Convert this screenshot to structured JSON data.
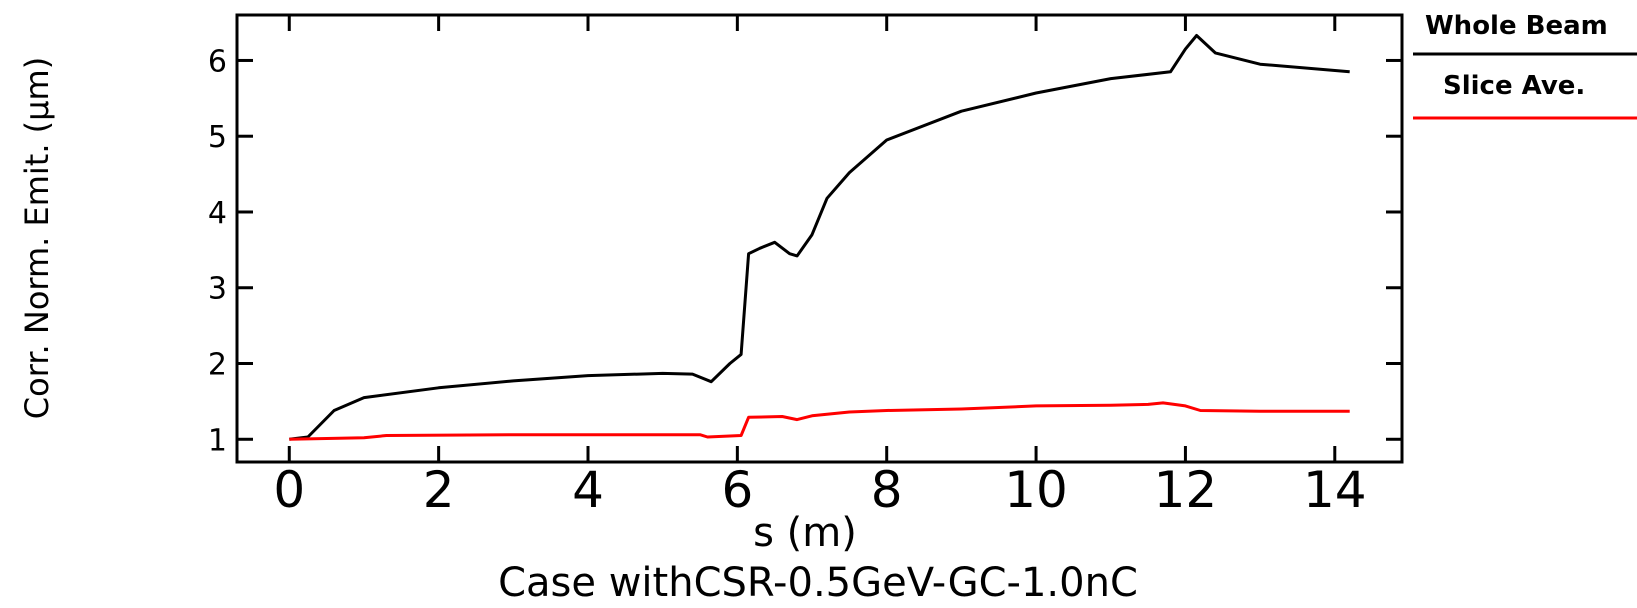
{
  "chart_data": {
    "type": "line",
    "title": "Case withCSR-0.5GeV-GC-1.0nC",
    "xlabel": "s (m)",
    "ylabel": "Corr. Norm. Emit. (μm)",
    "xlim": [
      -0.7,
      14.9
    ],
    "ylim": [
      0.7,
      6.6
    ],
    "xticks": [
      "0",
      "2",
      "4",
      "6",
      "8",
      "10",
      "12",
      "14"
    ],
    "yticks": [
      "1",
      "2",
      "3",
      "4",
      "5",
      "6"
    ],
    "legend_position": "right",
    "series": [
      {
        "name": "Whole Beam",
        "color": "#000000",
        "points": [
          [
            0.0,
            1.0
          ],
          [
            0.25,
            1.03
          ],
          [
            0.6,
            1.38
          ],
          [
            1.0,
            1.55
          ],
          [
            2.0,
            1.68
          ],
          [
            3.0,
            1.77
          ],
          [
            4.0,
            1.84
          ],
          [
            5.0,
            1.87
          ],
          [
            5.4,
            1.86
          ],
          [
            5.65,
            1.76
          ],
          [
            5.9,
            2.0
          ],
          [
            6.05,
            2.12
          ],
          [
            6.15,
            3.45
          ],
          [
            6.3,
            3.52
          ],
          [
            6.5,
            3.6
          ],
          [
            6.7,
            3.45
          ],
          [
            6.8,
            3.42
          ],
          [
            7.0,
            3.7
          ],
          [
            7.2,
            4.18
          ],
          [
            7.5,
            4.52
          ],
          [
            8.0,
            4.95
          ],
          [
            9.0,
            5.33
          ],
          [
            10.0,
            5.57
          ],
          [
            11.0,
            5.76
          ],
          [
            11.8,
            5.85
          ],
          [
            12.0,
            6.15
          ],
          [
            12.15,
            6.33
          ],
          [
            12.4,
            6.1
          ],
          [
            13.0,
            5.95
          ],
          [
            14.2,
            5.85
          ]
        ]
      },
      {
        "name": "Slice Ave.",
        "color": "#ff0000",
        "points": [
          [
            0.0,
            1.0
          ],
          [
            1.0,
            1.02
          ],
          [
            1.3,
            1.05
          ],
          [
            3.0,
            1.06
          ],
          [
            5.5,
            1.06
          ],
          [
            5.6,
            1.03
          ],
          [
            6.05,
            1.05
          ],
          [
            6.15,
            1.29
          ],
          [
            6.6,
            1.3
          ],
          [
            6.8,
            1.26
          ],
          [
            7.0,
            1.31
          ],
          [
            7.5,
            1.36
          ],
          [
            8.0,
            1.38
          ],
          [
            9.0,
            1.4
          ],
          [
            9.5,
            1.42
          ],
          [
            10.0,
            1.44
          ],
          [
            11.0,
            1.45
          ],
          [
            11.5,
            1.46
          ],
          [
            11.7,
            1.48
          ],
          [
            12.0,
            1.44
          ],
          [
            12.2,
            1.38
          ],
          [
            13.0,
            1.37
          ],
          [
            14.2,
            1.37
          ]
        ]
      }
    ]
  }
}
